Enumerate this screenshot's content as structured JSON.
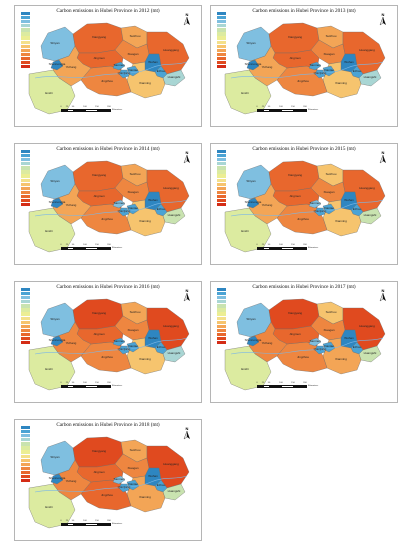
{
  "colors": {
    "palette": [
      "#2e86c1",
      "#4ba3d4",
      "#7fbfe0",
      "#a9d6d4",
      "#c9e3b0",
      "#dceba0",
      "#ecee93",
      "#f4e08a",
      "#f6c46e",
      "#f3a556",
      "#ee8640",
      "#e8672d",
      "#e04a1f",
      "#d42c16"
    ],
    "river": "#7bb7e6",
    "boundary": "#6a6a6a"
  },
  "icons": {
    "north_arrow": "north-arrow-icon"
  },
  "north_label": "N",
  "scale_labels": [
    "0",
    "25",
    "50",
    "100",
    "150",
    "200"
  ],
  "scale_unit": "Kilometers",
  "legend_labels": [
    "",
    "",
    "",
    "",
    "",
    "",
    "",
    "",
    "",
    "",
    "",
    "",
    "",
    ""
  ],
  "axis_labels": [
    "",
    "",
    "",
    "",
    "",
    ""
  ],
  "region_labels": [
    "Shiyan",
    "Xiangyang",
    "Suizhou",
    "Xiaogan",
    "Huanggang",
    "Wuhan",
    "Ezhou",
    "Huangshi",
    "Xianning",
    "Jingzhou",
    "Jingmen",
    "Yichang",
    "Enshi",
    "Shennongjia",
    "Tianmen",
    "Qianjiang",
    "Xiantao"
  ],
  "panels": [
    {
      "title": "Carbon emissions in Hubei Province in 2012 (mt)",
      "region_colors": [
        2,
        11,
        9,
        10,
        11,
        0,
        1,
        3,
        8,
        10,
        11,
        9,
        5,
        0,
        1,
        1,
        1
      ]
    },
    {
      "title": "Carbon emissions in Hubei Province in 2013 (mt)",
      "region_colors": [
        2,
        11,
        9,
        10,
        11,
        0,
        1,
        3,
        8,
        10,
        11,
        9,
        5,
        0,
        1,
        1,
        1
      ]
    },
    {
      "title": "Carbon emissions in Hubei Province in 2014 (mt)",
      "region_colors": [
        2,
        11,
        9,
        10,
        11,
        0,
        1,
        4,
        8,
        10,
        11,
        9,
        5,
        0,
        2,
        1,
        1
      ]
    },
    {
      "title": "Carbon emissions in Hubei Province in 2015 (mt)",
      "region_colors": [
        2,
        11,
        8,
        10,
        11,
        0,
        1,
        4,
        8,
        10,
        11,
        9,
        5,
        0,
        2,
        1,
        1
      ]
    },
    {
      "title": "Carbon emissions in Hubei Province in 2016 (mt)",
      "region_colors": [
        2,
        12,
        9,
        10,
        12,
        0,
        1,
        3,
        8,
        10,
        11,
        10,
        5,
        0,
        1,
        1,
        1
      ]
    },
    {
      "title": "Carbon emissions in Hubei Province in 2017 (mt)",
      "region_colors": [
        2,
        12,
        8,
        10,
        12,
        0,
        1,
        4,
        9,
        10,
        11,
        10,
        5,
        0,
        2,
        1,
        1
      ]
    },
    {
      "title": "Carbon emissions in Hubei Province in 2018 (mt)",
      "region_colors": [
        2,
        12,
        9,
        10,
        12,
        0,
        1,
        4,
        9,
        11,
        11,
        10,
        5,
        0,
        2,
        1,
        1
      ]
    }
  ]
}
